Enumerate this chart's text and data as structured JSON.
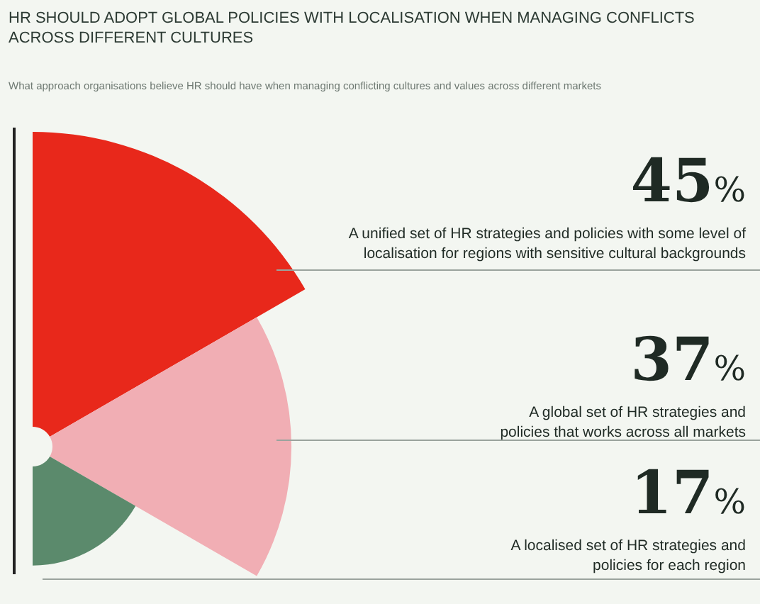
{
  "chart_data": {
    "type": "other",
    "title": "HR SHOULD ADOPT GLOBAL POLICIES WITH LOCALISATION WHEN MANAGING CONFLICTS ACROSS DIFFERENT CULTURES",
    "subtitle": "What approach organisations believe HR should have when managing conflicting cultures and values across different markets",
    "categories": [
      "A unified set of HR strategies and policies with some level of localisation for regions with sensitive cultural backgrounds",
      "A global set of HR strategies and policies that works across all markets",
      "A localised set of HR strategies and policies for each region"
    ],
    "values": [
      45,
      37,
      17
    ],
    "colors": [
      "#e8281b",
      "#f1aeb4",
      "#5b8a6c"
    ],
    "value_labels": [
      "45%",
      "37%",
      "17%"
    ]
  }
}
